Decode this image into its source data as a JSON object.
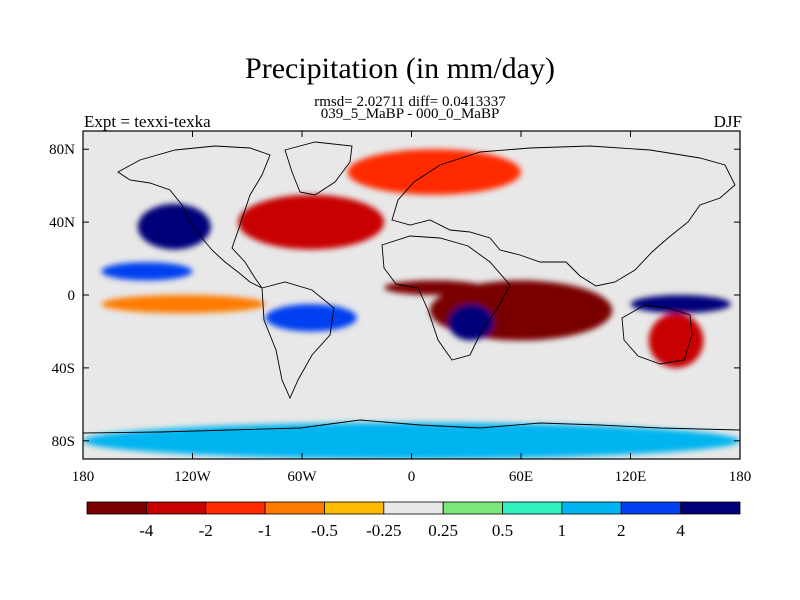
{
  "title": "Precipitation (in mm/day)",
  "stats_line": "rmsd= 2.02711 diff= 0.0413337",
  "experiment_label": "Expt = texxi-texka",
  "experiment_names": "039_5_MaBP - 000_0_MaBP",
  "season": "DJF",
  "chart_data": {
    "type": "heatmap",
    "title": "Precipitation (in mm/day)",
    "variable": "Precipitation difference",
    "units": "mm/day",
    "x_ticks": [
      "180",
      "120W",
      "60W",
      "0",
      "60E",
      "120E",
      "180"
    ],
    "y_ticks": [
      "80N",
      "40N",
      "0",
      "40S",
      "80S"
    ],
    "xlim": [
      -180,
      180
    ],
    "ylim": [
      -90,
      90
    ],
    "colorbar": {
      "levels": [
        "-4",
        "-2",
        "-1",
        "-0.5",
        "-0.25",
        "0.25",
        "0.5",
        "1",
        "2",
        "4"
      ],
      "colors": [
        "#7a0000",
        "#c80000",
        "#ff2a00",
        "#ff7a00",
        "#ffbb00",
        "#e8e8e8",
        "#7ae87a",
        "#30f0c0",
        "#00b4f0",
        "#0040f0",
        "#00007a"
      ]
    },
    "features": [
      {
        "lon": [
          10,
          110
        ],
        "lat": [
          -25,
          8
        ],
        "level": 0
      },
      {
        "lon": [
          -15,
          40
        ],
        "lat": [
          0,
          8
        ],
        "level": 0
      },
      {
        "lon": [
          -95,
          -15
        ],
        "lat": [
          25,
          55
        ],
        "level": 1
      },
      {
        "lon": [
          -35,
          60
        ],
        "lat": [
          55,
          80
        ],
        "level": 2
      },
      {
        "lon": [
          130,
          160
        ],
        "lat": [
          -40,
          -10
        ],
        "level": 1
      },
      {
        "lon": [
          -170,
          -80
        ],
        "lat": [
          -10,
          0
        ],
        "level": 3
      },
      {
        "lon": [
          -80,
          -30
        ],
        "lat": [
          -20,
          -5
        ],
        "level": 9
      },
      {
        "lon": [
          20,
          45
        ],
        "lat": [
          -25,
          -5
        ],
        "level": 10
      },
      {
        "lon": [
          120,
          175
        ],
        "lat": [
          -10,
          0
        ],
        "level": 10
      },
      {
        "lon": [
          -150,
          -110
        ],
        "lat": [
          25,
          50
        ],
        "level": 10
      },
      {
        "lon": [
          -170,
          -120
        ],
        "lat": [
          8,
          18
        ],
        "level": 9
      },
      {
        "lon": [
          -180,
          180
        ],
        "lat": [
          -90,
          -70
        ],
        "level": 8
      }
    ]
  }
}
